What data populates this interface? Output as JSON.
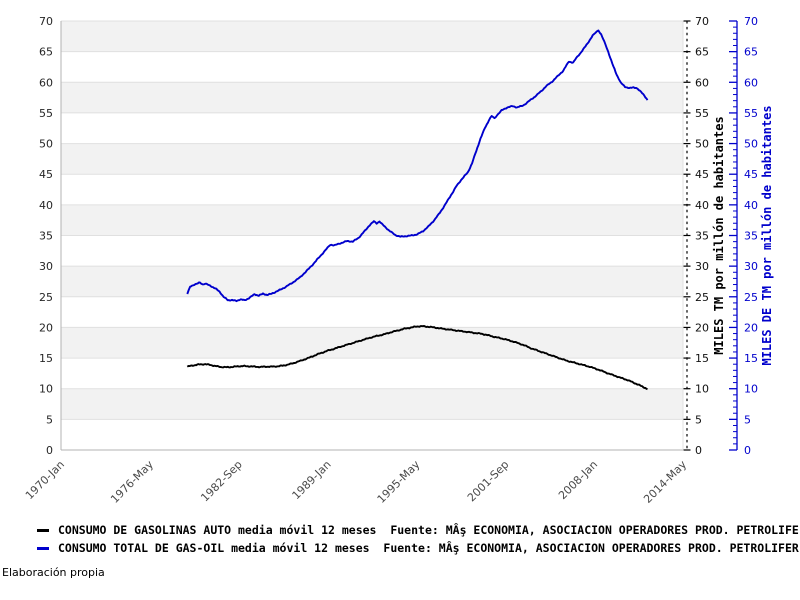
{
  "figure": {
    "footnote": "Elaboración propia"
  },
  "chart_data": {
    "type": "line",
    "title": "",
    "x_axis": {
      "tick_labels": [
        "1970-Jan",
        "1976-May",
        "1982-Sep",
        "1989-Jan",
        "1995-May",
        "2001-Sep",
        "2008-Jan",
        "2014-May"
      ],
      "tick_years": [
        1970.0,
        1976.3333,
        1982.6667,
        1989.0,
        1995.3333,
        2001.6667,
        2008.0,
        2014.3333
      ],
      "range_years": [
        1970.0,
        2014.3333
      ]
    },
    "y_left_axis": {
      "min": 0,
      "max": 70,
      "step": 5,
      "ticks": [
        0,
        5,
        10,
        15,
        20,
        25,
        30,
        35,
        40,
        45,
        50,
        55,
        60,
        65,
        70
      ]
    },
    "y_right_axis_black": {
      "min": 0,
      "max": 70,
      "step": 5,
      "ticks": [
        0,
        5,
        10,
        15,
        20,
        25,
        30,
        35,
        40,
        45,
        50,
        55,
        60,
        65,
        70
      ],
      "title": "MILES TM por millón de habitantes",
      "color": "#000000"
    },
    "y_right_axis_blue": {
      "min": 0,
      "max": 70,
      "step": 5,
      "ticks": [
        0,
        5,
        10,
        15,
        20,
        25,
        30,
        35,
        40,
        45,
        50,
        55,
        60,
        65,
        70
      ],
      "title": "MILES DE TM por millón de habitantes",
      "color": "#0000cc"
    },
    "grid": "horizontal-bands",
    "legend_position": "bottom-left",
    "legend": [
      {
        "label": "CONSUMO DE GASOLINAS AUTO media móvil 12 meses  Fuente: MÂş ECONOMIA, ASOCIACION OPERADORES PROD. PETROLIFE",
        "color": "#000000"
      },
      {
        "label": "CONSUMO TOTAL DE GAS-OIL media móvil 12 meses  Fuente: MÂş ECONOMIA, ASOCIACION OPERADORES PROD. PETROLIFER",
        "color": "#0000cc"
      }
    ],
    "series": [
      {
        "name": "CONSUMO DE GASOLINAS AUTO media móvil 12 meses",
        "color": "#000000",
        "points": [
          [
            1979.0,
            13.6
          ],
          [
            1979.4,
            13.8
          ],
          [
            1979.8,
            13.95
          ],
          [
            1980.3,
            14.0
          ],
          [
            1980.7,
            13.85
          ],
          [
            1981.0,
            13.7
          ],
          [
            1981.4,
            13.55
          ],
          [
            1981.8,
            13.5
          ],
          [
            1982.2,
            13.55
          ],
          [
            1982.6,
            13.65
          ],
          [
            1983.0,
            13.7
          ],
          [
            1983.4,
            13.65
          ],
          [
            1983.8,
            13.6
          ],
          [
            1984.2,
            13.55
          ],
          [
            1984.6,
            13.6
          ],
          [
            1985.0,
            13.6
          ],
          [
            1985.4,
            13.65
          ],
          [
            1985.8,
            13.75
          ],
          [
            1986.2,
            13.95
          ],
          [
            1986.6,
            14.2
          ],
          [
            1987.0,
            14.5
          ],
          [
            1987.5,
            14.9
          ],
          [
            1988.0,
            15.35
          ],
          [
            1988.5,
            15.8
          ],
          [
            1989.0,
            16.2
          ],
          [
            1989.5,
            16.55
          ],
          [
            1990.0,
            16.9
          ],
          [
            1990.5,
            17.25
          ],
          [
            1991.0,
            17.6
          ],
          [
            1991.5,
            17.95
          ],
          [
            1992.0,
            18.3
          ],
          [
            1992.5,
            18.6
          ],
          [
            1993.0,
            18.85
          ],
          [
            1993.5,
            19.2
          ],
          [
            1994.0,
            19.5
          ],
          [
            1994.5,
            19.8
          ],
          [
            1995.0,
            20.0
          ],
          [
            1995.3,
            20.15
          ],
          [
            1995.8,
            20.2
          ],
          [
            1996.2,
            20.1
          ],
          [
            1996.6,
            20.0
          ],
          [
            1997.0,
            19.85
          ],
          [
            1997.5,
            19.7
          ],
          [
            1998.0,
            19.55
          ],
          [
            1998.5,
            19.4
          ],
          [
            1999.0,
            19.25
          ],
          [
            1999.5,
            19.1
          ],
          [
            2000.0,
            18.95
          ],
          [
            2000.4,
            18.75
          ],
          [
            2000.8,
            18.5
          ],
          [
            2001.2,
            18.3
          ],
          [
            2001.6,
            18.1
          ],
          [
            2002.0,
            17.85
          ],
          [
            2002.5,
            17.5
          ],
          [
            2003.0,
            17.1
          ],
          [
            2003.5,
            16.6
          ],
          [
            2004.0,
            16.2
          ],
          [
            2004.5,
            15.8
          ],
          [
            2005.0,
            15.4
          ],
          [
            2005.5,
            15.0
          ],
          [
            2006.0,
            14.6
          ],
          [
            2006.5,
            14.3
          ],
          [
            2007.0,
            14.0
          ],
          [
            2007.5,
            13.7
          ],
          [
            2008.0,
            13.35
          ],
          [
            2008.5,
            12.95
          ],
          [
            2009.0,
            12.5
          ],
          [
            2009.5,
            12.1
          ],
          [
            2010.0,
            11.7
          ],
          [
            2010.4,
            11.4
          ],
          [
            2010.8,
            11.0
          ],
          [
            2011.2,
            10.6
          ],
          [
            2011.5,
            10.3
          ],
          [
            2011.8,
            9.9
          ]
        ]
      },
      {
        "name": "CONSUMO TOTAL DE GAS-OIL media móvil 12 meses",
        "color": "#0000cc",
        "points": [
          [
            1979.0,
            25.5
          ],
          [
            1979.2,
            26.6
          ],
          [
            1979.5,
            27.0
          ],
          [
            1979.9,
            27.3
          ],
          [
            1980.1,
            27.0
          ],
          [
            1980.3,
            27.2
          ],
          [
            1980.6,
            26.8
          ],
          [
            1981.0,
            26.4
          ],
          [
            1981.3,
            25.8
          ],
          [
            1981.6,
            25.0
          ],
          [
            1981.9,
            24.4
          ],
          [
            1982.2,
            24.5
          ],
          [
            1982.5,
            24.3
          ],
          [
            1982.8,
            24.6
          ],
          [
            1983.1,
            24.4
          ],
          [
            1983.4,
            24.8
          ],
          [
            1983.8,
            25.4
          ],
          [
            1984.1,
            25.2
          ],
          [
            1984.4,
            25.5
          ],
          [
            1984.7,
            25.3
          ],
          [
            1985.0,
            25.5
          ],
          [
            1985.5,
            26.0
          ],
          [
            1986.0,
            26.6
          ],
          [
            1986.5,
            27.3
          ],
          [
            1987.0,
            28.1
          ],
          [
            1987.5,
            29.2
          ],
          [
            1988.0,
            30.4
          ],
          [
            1988.5,
            31.7
          ],
          [
            1989.0,
            33.0
          ],
          [
            1989.2,
            33.5
          ],
          [
            1989.5,
            33.4
          ],
          [
            1990.0,
            33.8
          ],
          [
            1990.4,
            34.1
          ],
          [
            1990.8,
            34.0
          ],
          [
            1991.2,
            34.6
          ],
          [
            1991.6,
            35.6
          ],
          [
            1992.0,
            36.7
          ],
          [
            1992.3,
            37.3
          ],
          [
            1992.5,
            37.0
          ],
          [
            1992.7,
            37.3
          ],
          [
            1993.0,
            36.6
          ],
          [
            1993.4,
            35.8
          ],
          [
            1993.8,
            35.1
          ],
          [
            1994.2,
            34.8
          ],
          [
            1994.6,
            34.9
          ],
          [
            1995.0,
            35.0
          ],
          [
            1995.4,
            35.2
          ],
          [
            1995.8,
            35.7
          ],
          [
            1996.2,
            36.5
          ],
          [
            1996.6,
            37.5
          ],
          [
            1997.0,
            38.7
          ],
          [
            1997.4,
            40.1
          ],
          [
            1997.8,
            41.6
          ],
          [
            1998.2,
            43.1
          ],
          [
            1998.6,
            44.3
          ],
          [
            1999.0,
            45.3
          ],
          [
            1999.3,
            46.8
          ],
          [
            1999.6,
            48.8
          ],
          [
            1999.9,
            50.8
          ],
          [
            2000.2,
            52.5
          ],
          [
            2000.5,
            53.8
          ],
          [
            2000.7,
            54.5
          ],
          [
            2000.9,
            54.1
          ],
          [
            2001.1,
            54.7
          ],
          [
            2001.4,
            55.4
          ],
          [
            2001.8,
            55.9
          ],
          [
            2002.2,
            56.1
          ],
          [
            2002.5,
            55.9
          ],
          [
            2002.8,
            56.1
          ],
          [
            2003.0,
            56.3
          ],
          [
            2003.4,
            57.0
          ],
          [
            2003.8,
            57.7
          ],
          [
            2004.2,
            58.5
          ],
          [
            2004.6,
            59.4
          ],
          [
            2005.0,
            60.1
          ],
          [
            2005.4,
            61.0
          ],
          [
            2005.8,
            61.9
          ],
          [
            2006.2,
            63.4
          ],
          [
            2006.5,
            63.2
          ],
          [
            2006.8,
            64.2
          ],
          [
            2007.0,
            64.7
          ],
          [
            2007.3,
            65.6
          ],
          [
            2007.6,
            66.6
          ],
          [
            2007.9,
            67.6
          ],
          [
            2008.1,
            68.1
          ],
          [
            2008.3,
            68.5
          ],
          [
            2008.5,
            67.8
          ],
          [
            2008.8,
            66.2
          ],
          [
            2009.0,
            65.0
          ],
          [
            2009.3,
            63.0
          ],
          [
            2009.6,
            61.3
          ],
          [
            2009.9,
            59.9
          ],
          [
            2010.2,
            59.3
          ],
          [
            2010.5,
            59.0
          ],
          [
            2010.8,
            59.2
          ],
          [
            2011.0,
            59.1
          ],
          [
            2011.2,
            58.7
          ],
          [
            2011.5,
            58.1
          ],
          [
            2011.8,
            57.1
          ]
        ]
      }
    ],
    "style": {
      "band_color": "#f2f2f2",
      "grid_color": "#e0e0e0",
      "axis_color": "#b3b3b3",
      "left_tick_text_color": "#262626",
      "x_tick_text_color": "#4a4a4a",
      "blue": "#0000cc",
      "black": "#000000"
    }
  }
}
